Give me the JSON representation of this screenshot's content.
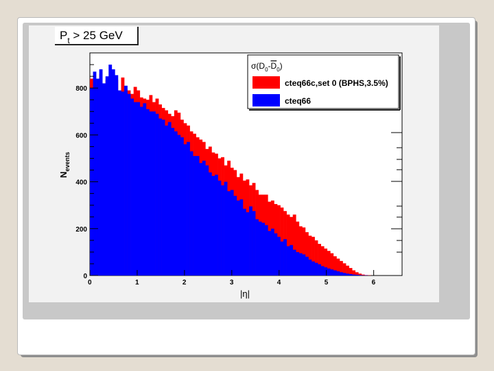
{
  "chart_data": {
    "type": "bar",
    "title_main": "P",
    "title_sub": "t",
    "title_rest": " > 25 GeV",
    "xlabel": "|η|",
    "ylabel_main": "N",
    "ylabel_sub": "events",
    "xlim": [
      0,
      6.6
    ],
    "ylim": [
      0,
      950
    ],
    "x_ticks": [
      0,
      1,
      2,
      3,
      4,
      5,
      6
    ],
    "y_ticks": [
      0,
      200,
      400,
      600,
      800
    ],
    "bin_width": 0.066,
    "legend_position": "top-right",
    "legend": {
      "title": "σ(D0-D̄0)",
      "title_prefix": "σ(D",
      "title_sub1": "0",
      "title_mid": "-",
      "title_bar": "D",
      "title_sub2": "0",
      "title_suffix": ")"
    },
    "series": [
      {
        "name": "cteq66c,set 0 (BPHS,3.5%)",
        "color": "#ff0000",
        "values": [
          840,
          800,
          810,
          860,
          790,
          835,
          805,
          850,
          835,
          785,
          845,
          795,
          790,
          775,
          805,
          790,
          760,
          755,
          750,
          770,
          740,
          755,
          730,
          715,
          705,
          690,
          680,
          705,
          695,
          665,
          650,
          640,
          615,
          605,
          590,
          580,
          570,
          540,
          550,
          525,
          520,
          500,
          505,
          470,
          490,
          460,
          450,
          420,
          435,
          405,
          410,
          385,
          395,
          365,
          345,
          345,
          345,
          315,
          320,
          305,
          300,
          290,
          275,
          260,
          250,
          260,
          230,
          210,
          205,
          185,
          170,
          165,
          150,
          135,
          125,
          115,
          105,
          95,
          82,
          72,
          62,
          52,
          42,
          32,
          22,
          14,
          8,
          4,
          2,
          1,
          0,
          0,
          0,
          0,
          0,
          0,
          0,
          0,
          0,
          0
        ]
      },
      {
        "name": "cteq66",
        "color": "#0000ff",
        "values": [
          800,
          870,
          840,
          880,
          820,
          850,
          900,
          880,
          855,
          790,
          785,
          810,
          775,
          755,
          740,
          740,
          720,
          735,
          710,
          700,
          700,
          690,
          670,
          665,
          640,
          655,
          630,
          615,
          600,
          590,
          560,
          570,
          530,
          510,
          510,
          480,
          490,
          470,
          440,
          425,
          430,
          405,
          385,
          400,
          360,
          365,
          340,
          320,
          325,
          285,
          270,
          295,
          275,
          240,
          230,
          225,
          215,
          190,
          200,
          180,
          165,
          145,
          155,
          125,
          130,
          110,
          100,
          95,
          90,
          80,
          68,
          60,
          54,
          48,
          40,
          35,
          30,
          26,
          22,
          18,
          14,
          11,
          8,
          6,
          4,
          3,
          2,
          1,
          1,
          0,
          0,
          0,
          0,
          0,
          0,
          0,
          0,
          0,
          0,
          0
        ]
      }
    ]
  }
}
